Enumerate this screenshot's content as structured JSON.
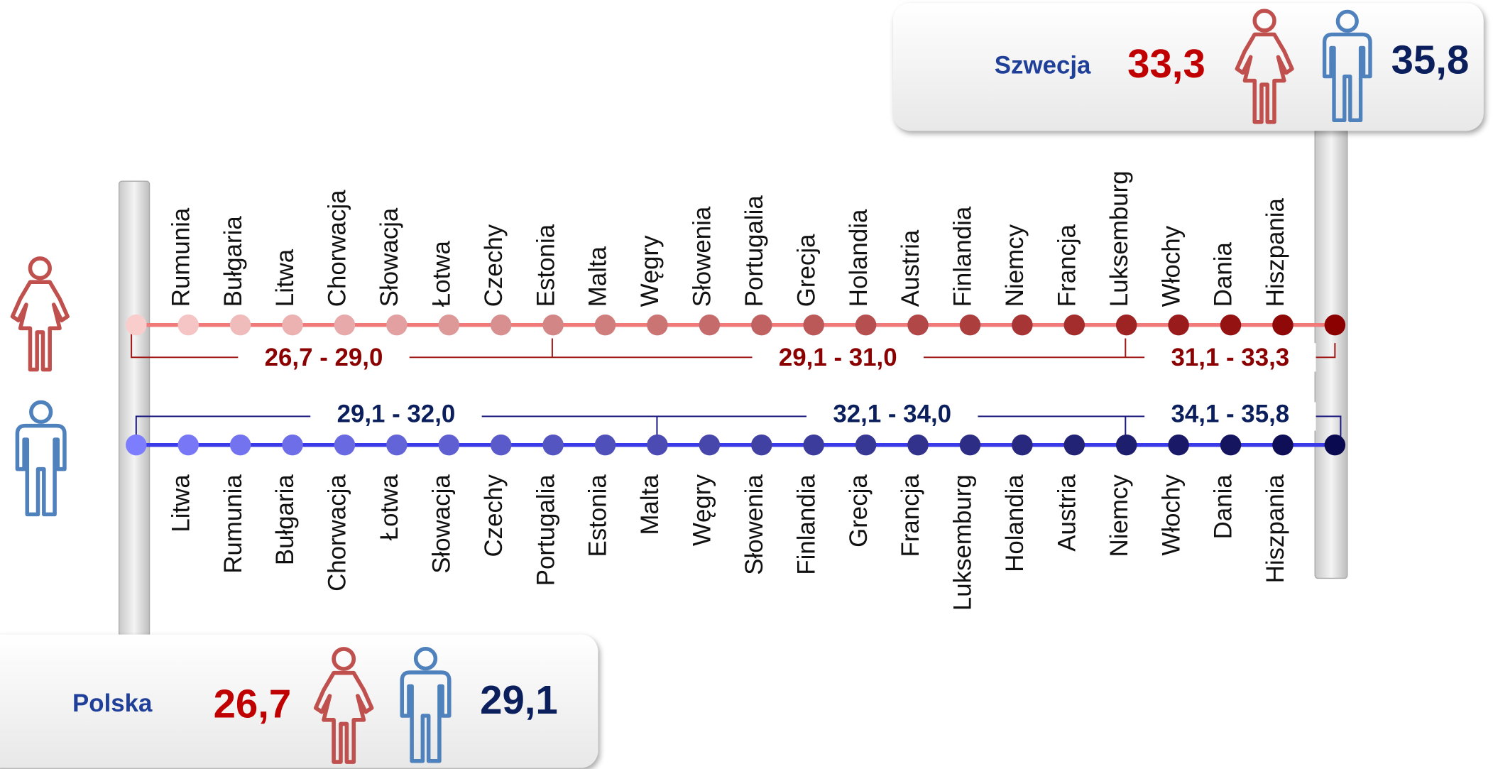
{
  "top_box": {
    "country": "Szwecja",
    "women": "33,3",
    "men": "35,8"
  },
  "bottom_box": {
    "country": "Polska",
    "women": "26,7",
    "men": "29,1"
  },
  "women": {
    "countries": [
      "Rumunia",
      "Bułgaria",
      "Litwa",
      "Chorwacja",
      "Słowacja",
      "Łotwa",
      "Czechy",
      "Estonia",
      "Malta",
      "Węgry",
      "Słowenia",
      "Portugalia",
      "Grecja",
      "Holandia",
      "Austria",
      "Finlandia",
      "Niemcy",
      "Francja",
      "Luksemburg",
      "Włochy",
      "Dania",
      "Hiszpania"
    ],
    "ranges": [
      "26,7 - 29,0",
      "29,1 - 31,0",
      "31,1 - 33,3"
    ]
  },
  "men": {
    "countries": [
      "Litwa",
      "Rumunia",
      "Bułgaria",
      "Chorwacja",
      "Łotwa",
      "Słowacja",
      "Czechy",
      "Portugalia",
      "Estonia",
      "Malta",
      "Węgry",
      "Słowenia",
      "Finlandia",
      "Grecja",
      "Francja",
      "Luksemburg",
      "Holandia",
      "Austria",
      "Niemcy",
      "Włochy",
      "Dania",
      "Hiszpania"
    ],
    "ranges": [
      "29,1 - 32,0",
      "32,1 - 34,0",
      "34,1 - 35,8"
    ]
  }
}
